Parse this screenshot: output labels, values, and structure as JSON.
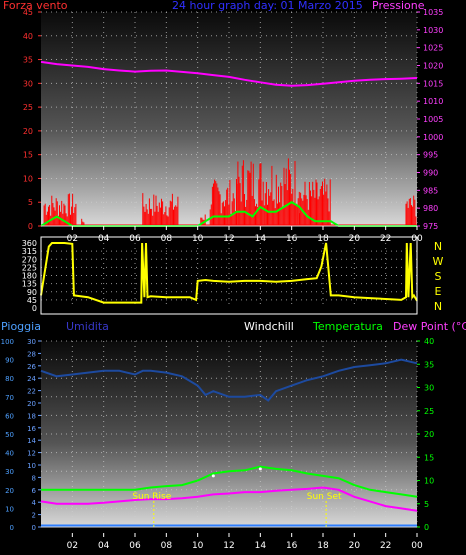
{
  "chart_data": [
    {
      "type": "line",
      "title": "24 hour graph day: 01 Marzo 2015",
      "left_label": "Forza vento",
      "right_label": "Pressione",
      "x_ticks": [
        "02",
        "04",
        "06",
        "08",
        "10",
        "12",
        "14",
        "16",
        "18",
        "20",
        "22",
        "00"
      ],
      "y_left": {
        "ticks": [
          0,
          5,
          10,
          15,
          20,
          25,
          30,
          35,
          40,
          45
        ],
        "range": [
          0,
          45
        ]
      },
      "y_right": {
        "ticks": [
          975,
          980,
          985,
          990,
          995,
          1000,
          1005,
          1010,
          1015,
          1020,
          1025,
          1030,
          1035
        ],
        "range": [
          975,
          1035
        ]
      },
      "colors": {
        "gust": "#ff0000",
        "wind": "#00ff00",
        "pressure": "#ff00ff",
        "left_axis": "#ff3030",
        "right_axis": "#ff40ff"
      },
      "pressure_series": {
        "hours": [
          0,
          1,
          2,
          3,
          4,
          5,
          6,
          7,
          8,
          9,
          10,
          11,
          12,
          13,
          14,
          15,
          16,
          17,
          18,
          19,
          20,
          21,
          22,
          23,
          24
        ],
        "values": [
          1021,
          1020.4,
          1020,
          1019.6,
          1019,
          1018.6,
          1018.3,
          1018.5,
          1018.6,
          1018.2,
          1017.8,
          1017.3,
          1016.8,
          1016,
          1015.3,
          1014.6,
          1014.3,
          1014.5,
          1014.9,
          1015.3,
          1015.7,
          1016,
          1016.2,
          1016.3,
          1016.5
        ]
      },
      "wind_series": {
        "hours": [
          0,
          0.5,
          1,
          1.5,
          2,
          3,
          4,
          5,
          6,
          7,
          8,
          9,
          10,
          10.5,
          11,
          11.5,
          12,
          12.5,
          13,
          13.5,
          14,
          14.5,
          15,
          15.5,
          16,
          16.5,
          17,
          17.5,
          18,
          18.5,
          19,
          20,
          21,
          22,
          23,
          23.5,
          24
        ],
        "values": [
          0,
          1,
          2,
          1,
          0,
          0,
          0,
          0,
          0,
          0,
          0,
          0,
          0,
          1,
          2,
          2,
          2,
          3,
          3,
          2,
          4,
          3,
          3,
          4,
          5,
          4,
          2,
          1,
          1,
          1,
          0,
          0,
          0,
          0,
          0,
          0,
          0
        ]
      },
      "gust_bursts": [
        {
          "from": 0.2,
          "to": 2.3,
          "max": 7
        },
        {
          "from": 2.6,
          "to": 2.8,
          "max": 2
        },
        {
          "from": 6.5,
          "to": 8.8,
          "max": 7
        },
        {
          "from": 10.2,
          "to": 10.5,
          "max": 3
        },
        {
          "from": 10.8,
          "to": 12.5,
          "max": 10
        },
        {
          "from": 12.5,
          "to": 16.5,
          "max": 15
        },
        {
          "from": 16.5,
          "to": 18.5,
          "max": 10
        },
        {
          "from": 23.3,
          "to": 24,
          "max": 7
        }
      ]
    },
    {
      "type": "line",
      "y_ticks": [
        0,
        45,
        90,
        135,
        180,
        225,
        270,
        315,
        360
      ],
      "range": [
        0,
        360
      ],
      "compass_labels": [
        "N",
        "W",
        "S",
        "E",
        "N"
      ],
      "color": "#ffff00",
      "series": {
        "hours": [
          0,
          0.5,
          0.7,
          1.5,
          2,
          2.1,
          3,
          4,
          5,
          6,
          6.4,
          6.45,
          6.6,
          6.7,
          6.8,
          7,
          8,
          9,
          9.5,
          9.9,
          10,
          10.5,
          11,
          12,
          13,
          14,
          15,
          16,
          17,
          17.6,
          17.9,
          18.1,
          18.2,
          18.5,
          19,
          20,
          21,
          22,
          23,
          23.3,
          23.35,
          23.45,
          23.6,
          23.7,
          23.8,
          24
        ],
        "values": [
          70,
          340,
          360,
          360,
          355,
          70,
          60,
          30,
          30,
          30,
          30,
          360,
          60,
          360,
          60,
          65,
          60,
          60,
          60,
          45,
          150,
          155,
          150,
          145,
          150,
          150,
          145,
          150,
          160,
          165,
          230,
          320,
          360,
          70,
          70,
          60,
          55,
          50,
          45,
          60,
          360,
          60,
          360,
          60,
          70,
          40
        ]
      }
    },
    {
      "type": "line",
      "labels": [
        "Pioggia",
        "Umidita",
        "Windchill",
        "Temperatura",
        "Dew Point (°C)"
      ],
      "annotations": [
        "Sun Rise",
        "Sun Set"
      ],
      "sun_rise_hour": 7.2,
      "sun_set_hour": 18.2,
      "y_left_rain": {
        "ticks": [
          0,
          10,
          20,
          30,
          40,
          50,
          60,
          70,
          80,
          90,
          100
        ],
        "range": [
          0,
          100
        ]
      },
      "y_left_hum": {
        "ticks": [
          0,
          2,
          4,
          6,
          8,
          10,
          12,
          14,
          16,
          18,
          20,
          22,
          24,
          26,
          28,
          30
        ],
        "range": [
          0,
          30
        ]
      },
      "y_right": {
        "ticks": [
          0,
          5,
          10,
          15,
          20,
          25,
          30,
          35,
          40
        ],
        "range": [
          0,
          40
        ]
      },
      "x_ticks": [
        "02",
        "04",
        "06",
        "08",
        "10",
        "12",
        "14",
        "16",
        "18",
        "20",
        "22",
        "00"
      ],
      "colors": {
        "rain": "#2f7fff",
        "humidity": "#1d4a9f",
        "windchill": "#ffffff",
        "temperature": "#00ff00",
        "dewpoint": "#ff00ff",
        "umidita_label": "#3838c8",
        "rain_label": "#4ea0ff",
        "right_axis": "#00ff00",
        "sun": "#ffff00"
      },
      "humidity_series": {
        "hours": [
          0,
          1,
          2,
          3,
          4,
          5,
          6,
          6.5,
          7,
          8,
          9,
          10,
          10.5,
          11,
          12,
          13,
          14,
          14.5,
          15,
          16,
          17,
          18,
          19,
          20,
          21,
          22,
          23,
          24
        ],
        "values": [
          84,
          81,
          82,
          83,
          84,
          84,
          82,
          84,
          84,
          83,
          81,
          76,
          71,
          73,
          70,
          70,
          71,
          68,
          73,
          76,
          79,
          81,
          84,
          86,
          87,
          88,
          90,
          88
        ]
      },
      "temperature_series": {
        "hours": [
          0,
          1,
          2,
          3,
          4,
          5,
          6,
          7,
          8,
          9,
          10,
          11,
          12,
          13,
          14,
          15,
          16,
          17,
          18,
          19,
          20,
          21,
          22,
          23,
          24
        ],
        "values": [
          8,
          8,
          8,
          8,
          8,
          8,
          8,
          8.5,
          8.8,
          9,
          10,
          11.5,
          12,
          12.2,
          13,
          12.5,
          12.2,
          11.5,
          11,
          10.5,
          9,
          8,
          7.5,
          7,
          6.5
        ]
      },
      "dewpoint_series": {
        "hours": [
          0,
          1,
          2,
          3,
          4,
          5,
          6,
          7,
          8,
          9,
          10,
          11,
          12,
          13,
          14,
          15,
          16,
          17,
          18,
          19,
          20,
          21,
          22,
          23,
          24
        ],
        "values": [
          5.5,
          5,
          5,
          5,
          5.2,
          5.5,
          5.8,
          6,
          6,
          6.2,
          6.5,
          7,
          7.2,
          7.5,
          7.5,
          7.8,
          8,
          8.2,
          8.5,
          8,
          6.5,
          5.5,
          4.5,
          4,
          3.5
        ]
      },
      "windchill_points": {
        "hours": [
          11,
          14
        ],
        "values": [
          11,
          12.5
        ]
      },
      "rain_value": 0
    }
  ]
}
